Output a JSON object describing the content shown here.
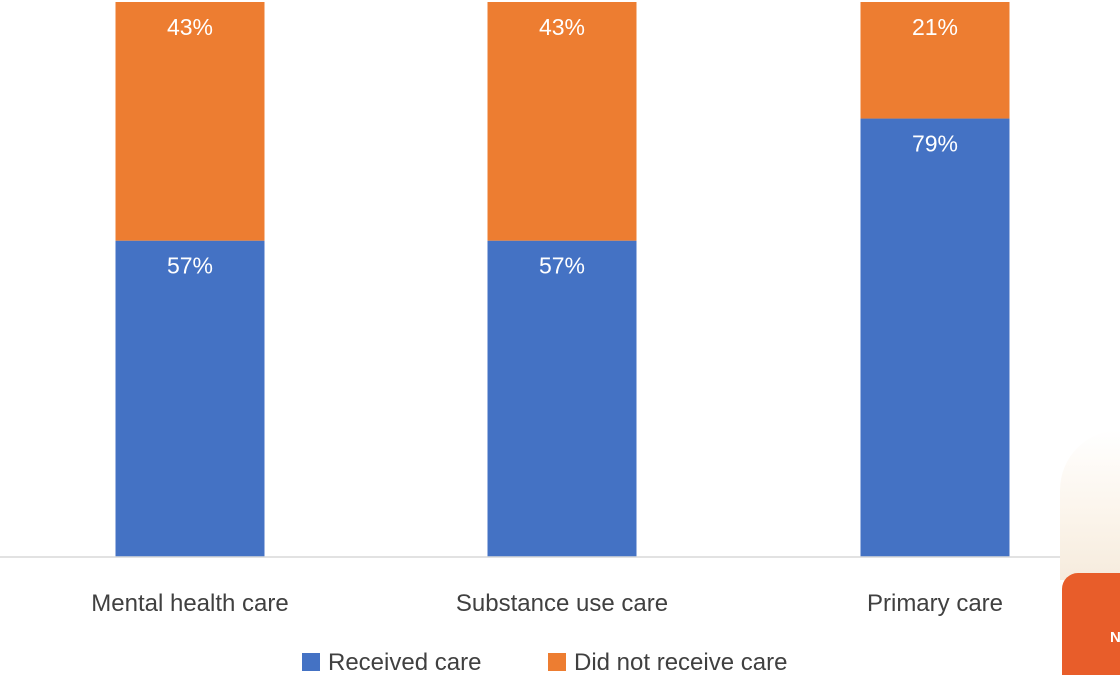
{
  "chart_data": {
    "type": "bar",
    "stacked": true,
    "title": "",
    "xlabel": "",
    "ylabel": "",
    "ylim": [
      0,
      100
    ],
    "grid": false,
    "legend_position": "bottom",
    "categories": [
      "Mental health care",
      "Substance use care",
      "Primary care"
    ],
    "series": [
      {
        "name": "Received care",
        "values": [
          57,
          57,
          79
        ],
        "labels": [
          "57%",
          "57%",
          "79%"
        ],
        "color": "#4472C4"
      },
      {
        "name": "Did not receive care",
        "values": [
          43,
          43,
          21
        ],
        "labels": [
          "43%",
          "43%",
          "21%"
        ],
        "color": "#ED7D31"
      }
    ]
  },
  "corner_tab": {
    "text": "N",
    "color": "#E85D2A"
  }
}
